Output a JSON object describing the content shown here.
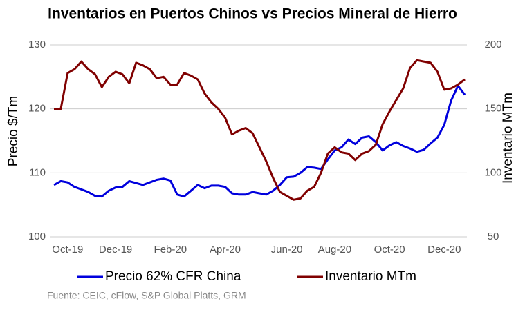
{
  "chart_data": {
    "type": "line",
    "title": "Inventarios en Puertos Chinos vs Precios Mineral de Hierro",
    "y_label": "Precio $/Tm",
    "y2_label": "Inventario MTm",
    "source": "Fuente: CEIC, cFlow, S&P Global Platts, GRM",
    "categories": [
      null,
      null,
      "Oct-19",
      null,
      null,
      null,
      null,
      null,
      null,
      "Dec-19",
      null,
      null,
      null,
      null,
      null,
      null,
      null,
      "Feb-20",
      null,
      null,
      null,
      null,
      null,
      null,
      null,
      "Apr-20",
      null,
      null,
      null,
      null,
      null,
      null,
      null,
      null,
      "Jun-20",
      null,
      null,
      null,
      null,
      null,
      null,
      "Aug-20",
      null,
      null,
      null,
      null,
      null,
      null,
      null,
      "Oct-20",
      null,
      null,
      null,
      null,
      null,
      null,
      null,
      "Dec-20",
      null,
      null,
      null
    ],
    "series": [
      {
        "name": "Precio 62% CFR China",
        "color": "#0000dd",
        "axis": "y",
        "values": [
          108.1,
          108.7,
          108.5,
          107.8,
          107.4,
          107.0,
          106.4,
          106.3,
          107.2,
          107.7,
          107.8,
          108.7,
          108.4,
          108.1,
          108.5,
          108.9,
          109.1,
          108.8,
          106.6,
          106.3,
          107.2,
          108.1,
          107.6,
          108.0,
          108.0,
          107.8,
          106.8,
          106.6,
          106.6,
          107.0,
          106.8,
          106.6,
          107.2,
          108.1,
          109.3,
          109.4,
          110.0,
          110.9,
          110.8,
          110.6,
          112.1,
          113.5,
          114.0,
          115.2,
          114.5,
          115.5,
          115.7,
          114.8,
          113.5,
          114.3,
          114.8,
          114.2,
          113.8,
          113.3,
          113.6,
          114.6,
          115.5,
          117.5,
          121.3,
          123.6,
          122.2
        ]
      },
      {
        "name": "Inventario MTm",
        "color": "#800000",
        "axis": "y2",
        "values": [
          150,
          150,
          178,
          181,
          187,
          181,
          177,
          167,
          175,
          179,
          177,
          170,
          186,
          184,
          181,
          174,
          175,
          169,
          169,
          178,
          176,
          173,
          162,
          155,
          150,
          143,
          130,
          133,
          135,
          131,
          120,
          109,
          96,
          85,
          82,
          79,
          80,
          86,
          89,
          100,
          115,
          120,
          116,
          115,
          110,
          115,
          117,
          122,
          138,
          148,
          157,
          166,
          182,
          188,
          187,
          186,
          179,
          165,
          166,
          169,
          173
        ]
      }
    ],
    "ylim": [
      100,
      130
    ],
    "yticks": [
      100,
      110,
      120,
      130
    ],
    "y2lim": [
      50,
      200
    ],
    "y2ticks": [
      50,
      100,
      150,
      200
    ],
    "grid": true
  }
}
